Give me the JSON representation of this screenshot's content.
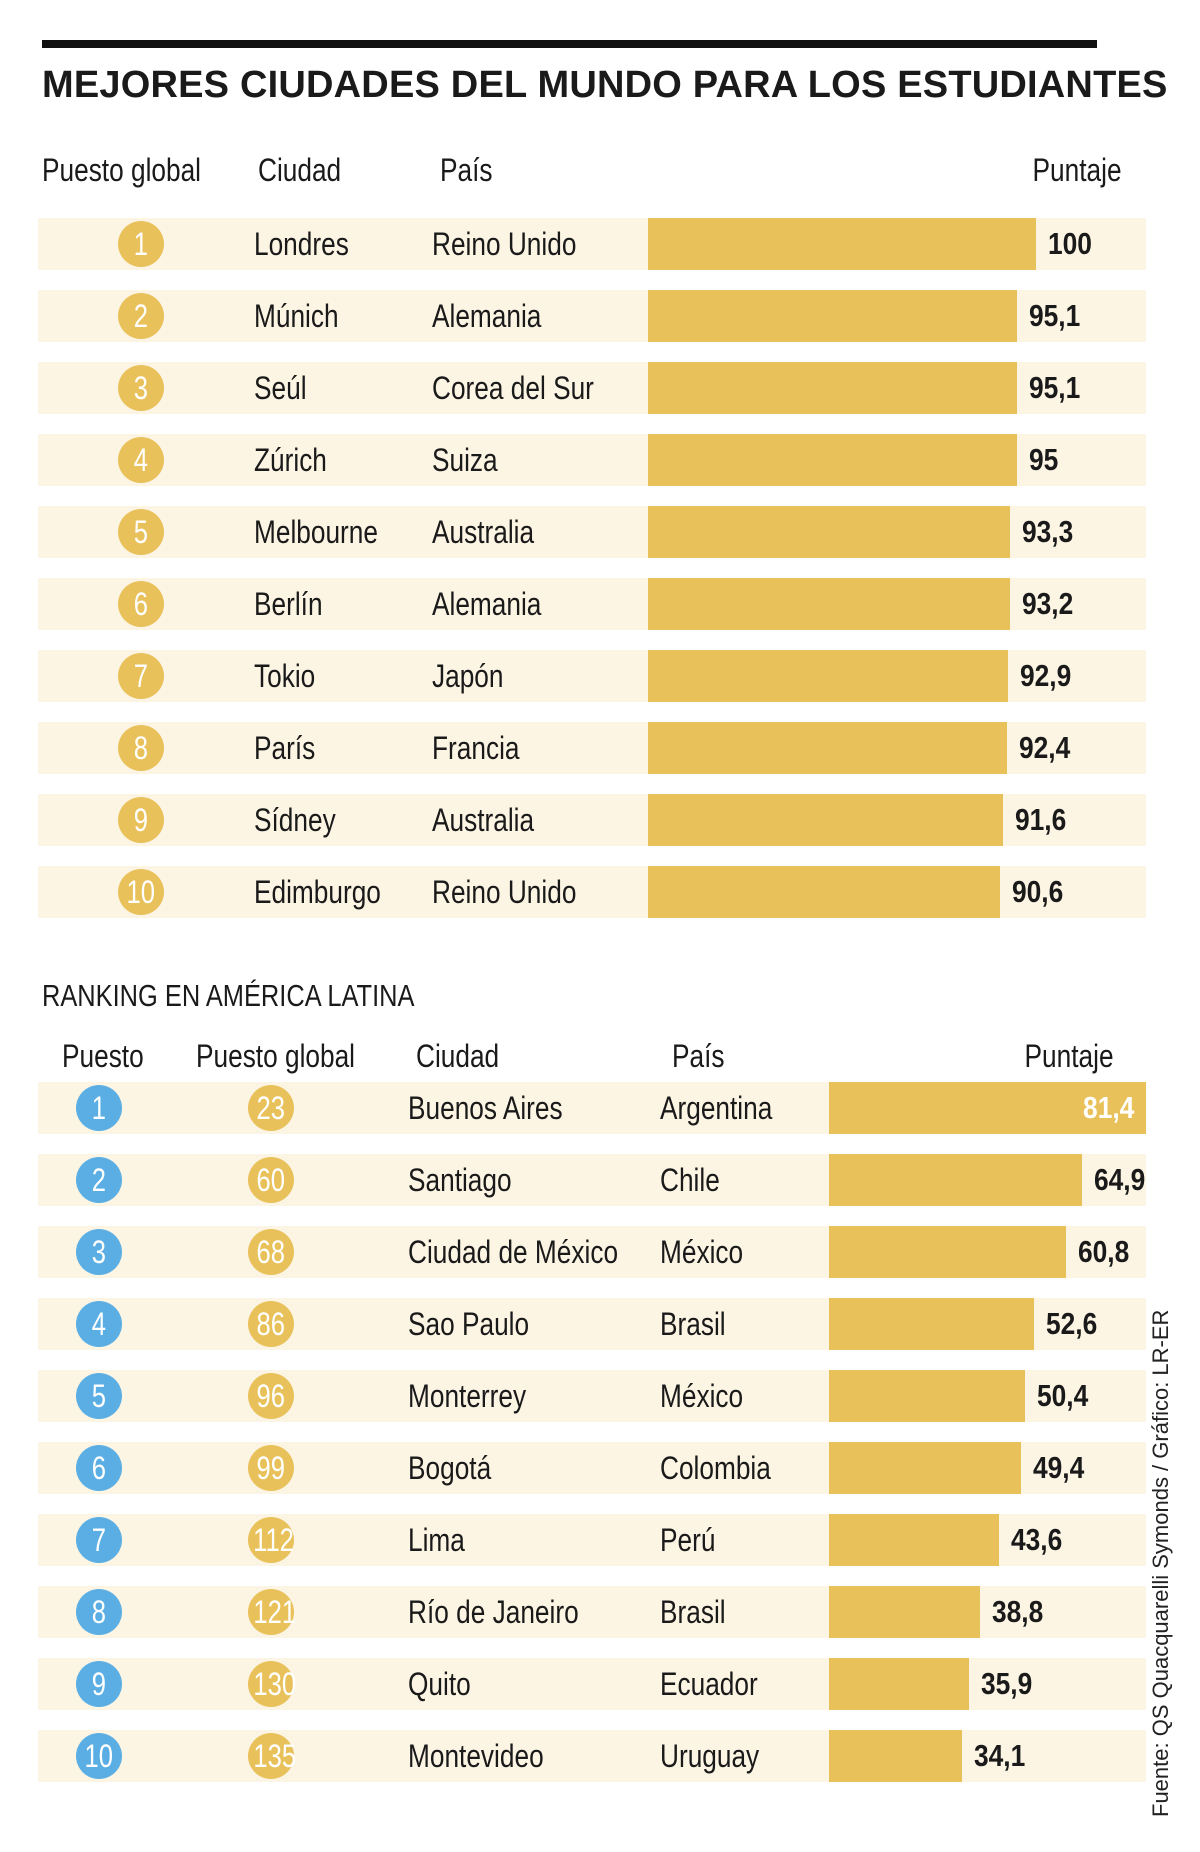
{
  "title": "MEJORES CIUDADES DEL MUNDO PARA LOS ESTUDIANTES",
  "global": {
    "headers": {
      "rank": "Puesto global",
      "city": "Ciudad",
      "country": "País",
      "score": "Puntaje"
    },
    "rows": [
      {
        "rank": "1",
        "city": "Londres",
        "country": "Reino Unido",
        "score": "100"
      },
      {
        "rank": "2",
        "city": "Múnich",
        "country": "Alemania",
        "score": "95,1"
      },
      {
        "rank": "3",
        "city": "Seúl",
        "country": "Corea del Sur",
        "score": "95,1"
      },
      {
        "rank": "4",
        "city": "Zúrich",
        "country": "Suiza",
        "score": "95"
      },
      {
        "rank": "5",
        "city": "Melbourne",
        "country": "Australia",
        "score": "93,3"
      },
      {
        "rank": "6",
        "city": "Berlín",
        "country": "Alemania",
        "score": "93,2"
      },
      {
        "rank": "7",
        "city": "Tokio",
        "country": "Japón",
        "score": "92,9"
      },
      {
        "rank": "8",
        "city": "París",
        "country": "Francia",
        "score": "92,4"
      },
      {
        "rank": "9",
        "city": "Sídney",
        "country": "Australia",
        "score": "91,6"
      },
      {
        "rank": "10",
        "city": "Edimburgo",
        "country": "Reino Unido",
        "score": "90,6"
      }
    ]
  },
  "latam": {
    "subtitle": "RANKING EN AMÉRICA LATINA",
    "headers": {
      "rank": "Puesto",
      "global_rank": "Puesto global",
      "city": "Ciudad",
      "country": "País",
      "score": "Puntaje"
    },
    "rows": [
      {
        "rank": "1",
        "global_rank": "23",
        "city": "Buenos Aires",
        "country": "Argentina",
        "score": "81,4"
      },
      {
        "rank": "2",
        "global_rank": "60",
        "city": "Santiago",
        "country": "Chile",
        "score": "64,9"
      },
      {
        "rank": "3",
        "global_rank": "68",
        "city": "Ciudad de México",
        "country": "México",
        "score": "60,8"
      },
      {
        "rank": "4",
        "global_rank": "86",
        "city": "Sao Paulo",
        "country": "Brasil",
        "score": "52,6"
      },
      {
        "rank": "5",
        "global_rank": "96",
        "city": "Monterrey",
        "country": "México",
        "score": "50,4"
      },
      {
        "rank": "6",
        "global_rank": "99",
        "city": "Bogotá",
        "country": "Colombia",
        "score": "49,4"
      },
      {
        "rank": "7",
        "global_rank": "112",
        "city": "Lima",
        "country": "Perú",
        "score": "43,6"
      },
      {
        "rank": "8",
        "global_rank": "121",
        "city": "Río de Janeiro",
        "country": "Brasil",
        "score": "38,8"
      },
      {
        "rank": "9",
        "global_rank": "130",
        "city": "Quito",
        "country": "Ecuador",
        "score": "35,9"
      },
      {
        "rank": "10",
        "global_rank": "135",
        "city": "Montevideo",
        "country": "Uruguay",
        "score": "34,1"
      }
    ]
  },
  "source": "Fuente: QS Quacquarelli Symonds / Gráfico: LR-ER",
  "colors": {
    "bar": "#e9c15a",
    "row_bg": "#fdf5e4",
    "rank_circle": "#e9c15a",
    "latam_circle": "#5aaee3"
  },
  "chart_data": [
    {
      "type": "bar",
      "title": "MEJORES CIUDADES DEL MUNDO PARA LOS ESTUDIANTES",
      "orientation": "horizontal",
      "categories": [
        "Londres",
        "Múnich",
        "Seúl",
        "Zúrich",
        "Melbourne",
        "Berlín",
        "Tokio",
        "París",
        "Sídney",
        "Edimburgo"
      ],
      "values": [
        100,
        95.1,
        95.1,
        95,
        93.3,
        93.2,
        92.9,
        92.4,
        91.6,
        90.6
      ],
      "xlabel": "Puntaje",
      "xlim": [
        0,
        100
      ]
    },
    {
      "type": "bar",
      "title": "RANKING EN AMÉRICA LATINA",
      "orientation": "horizontal",
      "categories": [
        "Buenos Aires",
        "Santiago",
        "Ciudad de México",
        "Sao Paulo",
        "Monterrey",
        "Bogotá",
        "Lima",
        "Río de Janeiro",
        "Quito",
        "Montevideo"
      ],
      "values": [
        81.4,
        64.9,
        60.8,
        52.6,
        50.4,
        49.4,
        43.6,
        38.8,
        35.9,
        34.1
      ],
      "xlabel": "Puntaje"
    }
  ]
}
